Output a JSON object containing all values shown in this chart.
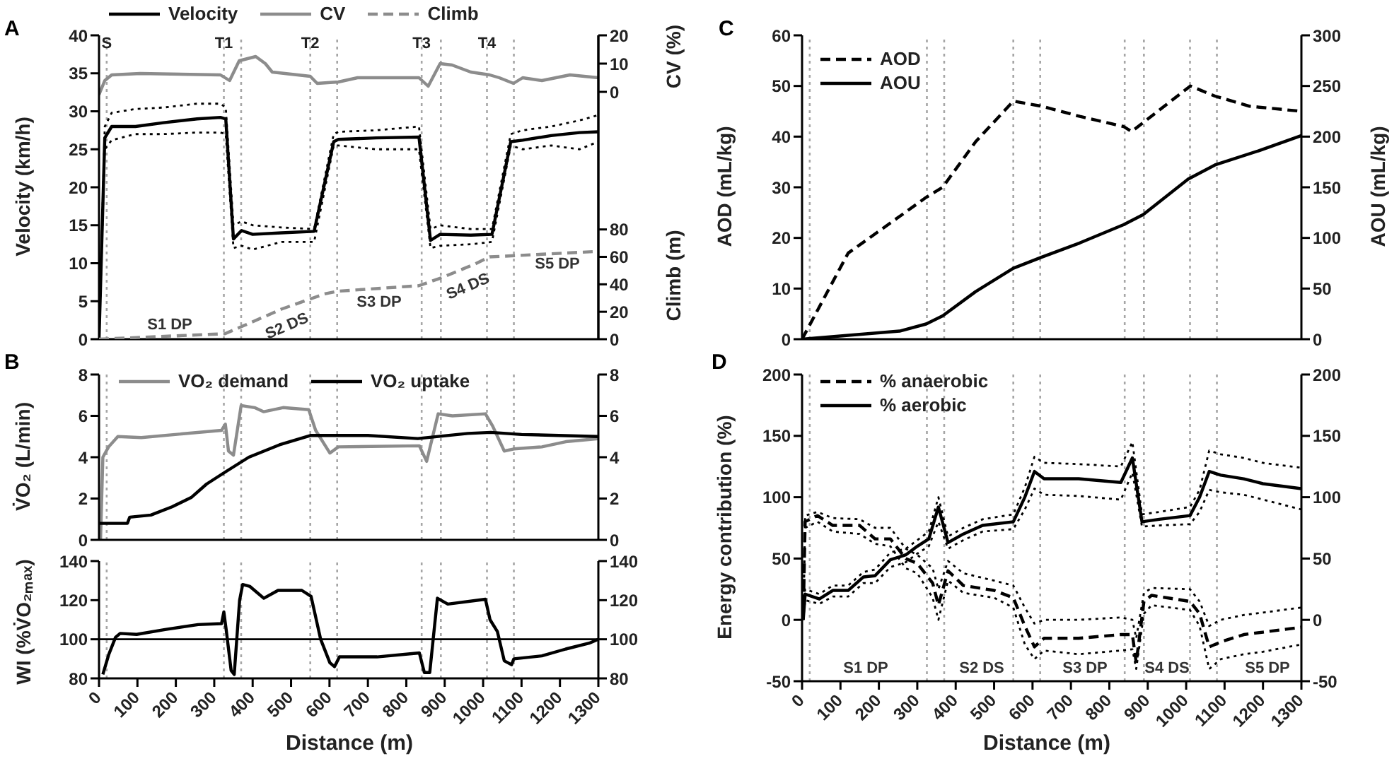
{
  "chart_data": [
    {
      "type": "line",
      "title": "A",
      "ylabel": "Velocity (km/h)",
      "y2label": "CV (%)",
      "y3label": "Climb (m)",
      "xlim": [
        0,
        1300
      ],
      "ylim": [
        0,
        40
      ],
      "yticks": [
        0,
        5,
        10,
        15,
        20,
        25,
        30,
        35,
        40
      ],
      "y2lim": [
        -87.5,
        20
      ],
      "y2ticks": [
        0,
        10,
        20
      ],
      "y3lim": [
        0,
        221.5
      ],
      "y3ticks": [
        0,
        20,
        40,
        60,
        80
      ],
      "tick_labels": "y",
      "legend": "top",
      "series": [
        {
          "name": "Velocity",
          "color": "#000000",
          "x": [
            0,
            15,
            33,
            95,
            168,
            255,
            316,
            330,
            350,
            371,
            400,
            475,
            560,
            611,
            623,
            722,
            833,
            863,
            888,
            968,
            1023,
            1072,
            1103,
            1177,
            1251,
            1300
          ],
          "values": [
            0,
            26.5,
            28,
            28,
            28.5,
            29,
            29.2,
            29,
            13.2,
            14.3,
            13.8,
            14,
            14.2,
            26,
            26.3,
            26.5,
            26.6,
            13,
            13.8,
            13.7,
            13.8,
            26,
            26.2,
            26.8,
            27.2,
            27.3
          ]
        },
        {
          "color": "#000000",
          "line_style": "dotted",
          "x": [
            0,
            15,
            33,
            95,
            168,
            255,
            316,
            330,
            350,
            371,
            400,
            475,
            560,
            611,
            623,
            722,
            833,
            863,
            888,
            968,
            1023,
            1072,
            1103,
            1177,
            1251,
            1300
          ],
          "values": [
            0,
            28,
            29.8,
            30.3,
            30.5,
            31,
            31,
            30.5,
            15,
            15.5,
            15,
            14.7,
            14.5,
            27,
            27.3,
            27.5,
            28,
            14.5,
            15,
            14.5,
            14.5,
            27,
            27.5,
            28,
            28.8,
            29.5
          ]
        },
        {
          "color": "#000000",
          "line_style": "dotted",
          "x": [
            0,
            15,
            33,
            95,
            168,
            255,
            316,
            330,
            350,
            371,
            400,
            475,
            560,
            611,
            623,
            722,
            833,
            863,
            888,
            968,
            1023,
            1072,
            1103,
            1177,
            1251,
            1300
          ],
          "values": [
            0,
            25,
            26.2,
            27,
            27,
            27.2,
            27.2,
            27,
            12,
            12.3,
            11.8,
            12.8,
            12.8,
            25.5,
            25.5,
            25,
            25,
            12,
            12.3,
            12.5,
            12.8,
            25.5,
            25,
            25.5,
            25,
            26
          ]
        },
        {
          "name": "CV",
          "color": "#8c8c8c",
          "axis": "y2",
          "x": [
            0,
            15,
            33,
            107,
            316,
            340,
            365,
            408,
            433,
            451,
            550,
            568,
            623,
            673,
            833,
            857,
            888,
            919,
            968,
            1017,
            1042,
            1079,
            1103,
            1153,
            1226,
            1300
          ],
          "values": [
            -1,
            4,
            6,
            6.5,
            6,
            4,
            11,
            12.5,
            10,
            7,
            5.5,
            3,
            3.5,
            5,
            5,
            2,
            10,
            9.5,
            7,
            6,
            5,
            3,
            5,
            4,
            6,
            5
          ]
        },
        {
          "name": "Climb",
          "color": "#8c8c8c",
          "axis": "y3",
          "line_style": "dashed",
          "x": [
            0,
            328,
            378,
            476,
            587,
            623,
            833,
            894,
            980,
            1017,
            1091,
            1300
          ],
          "values": [
            0,
            4,
            10,
            22,
            33,
            35,
            39,
            45,
            55,
            60,
            61,
            64
          ]
        }
      ],
      "ref_lines": [
        {
          "axis": "x",
          "value": 20,
          "label": "S",
          "color": "#a6a6a6",
          "line_style": "dotted"
        },
        {
          "axis": "x",
          "value": 325,
          "label": "T1",
          "color": "#a6a6a6",
          "line_style": "dotted"
        },
        {
          "axis": "x",
          "value": 370,
          "color": "#a6a6a6",
          "line_style": "dotted"
        },
        {
          "axis": "x",
          "value": 550,
          "label": "T2",
          "color": "#a6a6a6",
          "line_style": "dotted"
        },
        {
          "axis": "x",
          "value": 620,
          "color": "#a6a6a6",
          "line_style": "dotted"
        },
        {
          "axis": "x",
          "value": 840,
          "label": "T3",
          "color": "#a6a6a6",
          "line_style": "dotted"
        },
        {
          "axis": "x",
          "value": 890,
          "color": "#a6a6a6",
          "line_style": "dotted"
        },
        {
          "axis": "x",
          "value": 1010,
          "label": "T4",
          "color": "#a6a6a6",
          "line_style": "dotted"
        },
        {
          "axis": "x",
          "value": 1080,
          "color": "#a6a6a6",
          "line_style": "dotted"
        }
      ],
      "annotations": [
        "S1 DP",
        "S2 DS",
        "S3 DP",
        "S4 DS",
        "S5 DP"
      ]
    },
    {
      "type": "line",
      "title": "B",
      "ylabel": "V̇O₂ (L/min)",
      "xlim": [
        0,
        1300
      ],
      "ylim": [
        0,
        8
      ],
      "yticks": [
        0,
        2,
        4,
        6,
        8
      ],
      "y2lim": [
        0,
        8
      ],
      "y2ticks": [
        0,
        2,
        4,
        6,
        8
      ],
      "tick_labels": "y",
      "legend": "top left",
      "series": [
        {
          "name": "VO₂ demand",
          "color": "#8c8c8c",
          "x": [
            4,
            10,
            25,
            49,
            110,
            319,
            329,
            337,
            350,
            370,
            405,
            429,
            479,
            546,
            564,
            601,
            623,
            834,
            853,
            883,
            920,
            1006,
            1025,
            1055,
            1080,
            1153,
            1215,
            1300
          ],
          "values": [
            0,
            4,
            4.5,
            5,
            4.95,
            5.3,
            5.6,
            4.3,
            4.1,
            6.5,
            6.4,
            6.2,
            6.4,
            6.3,
            5.3,
            4.2,
            4.5,
            4.55,
            3.8,
            6.1,
            6,
            6.1,
            5.5,
            4.3,
            4.4,
            4.5,
            4.75,
            4.9
          ]
        },
        {
          "name": "VO₂ uptake",
          "color": "#000000",
          "x": [
            0,
            74,
            80,
            135,
            190,
            240,
            280,
            330,
            390,
            470,
            550,
            700,
            830,
            960,
            1020,
            1100,
            1300
          ],
          "values": [
            0.8,
            0.8,
            1.1,
            1.2,
            1.6,
            2.05,
            2.7,
            3.3,
            4,
            4.6,
            5.05,
            5.05,
            4.9,
            5.15,
            5.2,
            5.1,
            5
          ]
        }
      ],
      "ref_lines": [
        {
          "axis": "x",
          "value": 20,
          "color": "#a6a6a6",
          "line_style": "dotted"
        },
        {
          "axis": "x",
          "value": 325,
          "color": "#a6a6a6",
          "line_style": "dotted"
        },
        {
          "axis": "x",
          "value": 370,
          "color": "#a6a6a6",
          "line_style": "dotted"
        },
        {
          "axis": "x",
          "value": 550,
          "color": "#a6a6a6",
          "line_style": "dotted"
        },
        {
          "axis": "x",
          "value": 620,
          "color": "#a6a6a6",
          "line_style": "dotted"
        },
        {
          "axis": "x",
          "value": 840,
          "color": "#a6a6a6",
          "line_style": "dotted"
        },
        {
          "axis": "x",
          "value": 890,
          "color": "#a6a6a6",
          "line_style": "dotted"
        },
        {
          "axis": "x",
          "value": 1010,
          "color": "#a6a6a6",
          "line_style": "dotted"
        },
        {
          "axis": "x",
          "value": 1080,
          "color": "#a6a6a6",
          "line_style": "dotted"
        }
      ]
    },
    {
      "type": "line",
      "ylabel": "WI (%V̇O₂ₘₐₓ)",
      "xlabel": "Distance (m)",
      "xlim": [
        0,
        1300
      ],
      "xticks": [
        0,
        100,
        200,
        300,
        400,
        500,
        600,
        700,
        800,
        900,
        1000,
        1100,
        1200,
        1300
      ],
      "ylim": [
        80,
        140
      ],
      "yticks": [
        80,
        100,
        120,
        140
      ],
      "y2lim": [
        80,
        140
      ],
      "y2ticks": [
        80,
        100,
        120,
        140
      ],
      "series": [
        {
          "color": "#000000",
          "x": [
            10,
            25,
            43,
            55,
            98,
            172,
            258,
            319,
            325,
            331,
            344,
            352,
            366,
            374,
            393,
            429,
            466,
            528,
            552,
            577,
            601,
            613,
            626,
            724,
            834,
            847,
            861,
            881,
            908,
            1006,
            1018,
            1037,
            1055,
            1074,
            1080,
            1153,
            1215,
            1276,
            1300
          ],
          "values": [
            82,
            92,
            101,
            103,
            102.5,
            105,
            107.5,
            108,
            114,
            105,
            84,
            82,
            120,
            128,
            127,
            121,
            125,
            125,
            122,
            100,
            88,
            86,
            91,
            91,
            93,
            83,
            83,
            121,
            118,
            120.5,
            110,
            104,
            89,
            87,
            90,
            91.5,
            95,
            98,
            100
          ]
        }
      ],
      "ref_lines": [
        {
          "axis": "y",
          "value": 100,
          "color": "#000000",
          "line_style": "solid"
        },
        {
          "axis": "x",
          "value": 20,
          "color": "#a6a6a6",
          "line_style": "dotted"
        },
        {
          "axis": "x",
          "value": 325,
          "color": "#a6a6a6",
          "line_style": "dotted"
        },
        {
          "axis": "x",
          "value": 370,
          "color": "#a6a6a6",
          "line_style": "dotted"
        },
        {
          "axis": "x",
          "value": 550,
          "color": "#a6a6a6",
          "line_style": "dotted"
        },
        {
          "axis": "x",
          "value": 620,
          "color": "#a6a6a6",
          "line_style": "dotted"
        },
        {
          "axis": "x",
          "value": 840,
          "color": "#a6a6a6",
          "line_style": "dotted"
        },
        {
          "axis": "x",
          "value": 890,
          "color": "#a6a6a6",
          "line_style": "dotted"
        },
        {
          "axis": "x",
          "value": 1010,
          "color": "#a6a6a6",
          "line_style": "dotted"
        },
        {
          "axis": "x",
          "value": 1080,
          "color": "#a6a6a6",
          "line_style": "dotted"
        }
      ]
    },
    {
      "type": "line",
      "title": "C",
      "ylabel": "AOD (mL/kg)",
      "y2label": "AOU (mL/kg)",
      "xlim": [
        0,
        1300
      ],
      "ylim": [
        0,
        60
      ],
      "yticks": [
        0,
        10,
        20,
        30,
        40,
        50,
        60
      ],
      "y2lim": [
        0,
        300
      ],
      "y2ticks": [
        0,
        50,
        100,
        150,
        200,
        250,
        300
      ],
      "tick_labels": "y",
      "legend": "top left",
      "series": [
        {
          "name": "AOD",
          "color": "#000000",
          "line_style": "dashed",
          "x": [
            0,
            120,
            231,
            323,
            366,
            452,
            550,
            624,
            723,
            837,
            858,
            1011,
            1075,
            1165,
            1300
          ],
          "values": [
            0,
            17,
            23,
            28,
            30,
            39,
            47,
            46,
            44,
            42,
            41,
            50,
            48,
            46,
            45
          ]
        },
        {
          "name": "AOU",
          "color": "#000000",
          "axis": "y2",
          "x": [
            0,
            254,
            323,
            366,
            452,
            550,
            624,
            723,
            837,
            888,
            1005,
            1075,
            1189,
            1300
          ],
          "values": [
            0,
            8,
            15,
            23,
            47,
            70,
            81,
            95,
            113,
            123,
            158,
            172,
            186,
            201
          ]
        }
      ],
      "ref_lines": [
        {
          "axis": "x",
          "value": 20,
          "color": "#a6a6a6",
          "line_style": "dotted"
        },
        {
          "axis": "x",
          "value": 325,
          "color": "#a6a6a6",
          "line_style": "dotted"
        },
        {
          "axis": "x",
          "value": 370,
          "color": "#a6a6a6",
          "line_style": "dotted"
        },
        {
          "axis": "x",
          "value": 550,
          "color": "#a6a6a6",
          "line_style": "dotted"
        },
        {
          "axis": "x",
          "value": 620,
          "color": "#a6a6a6",
          "line_style": "dotted"
        },
        {
          "axis": "x",
          "value": 840,
          "color": "#a6a6a6",
          "line_style": "dotted"
        },
        {
          "axis": "x",
          "value": 890,
          "color": "#a6a6a6",
          "line_style": "dotted"
        },
        {
          "axis": "x",
          "value": 1010,
          "color": "#a6a6a6",
          "line_style": "dotted"
        },
        {
          "axis": "x",
          "value": 1080,
          "color": "#a6a6a6",
          "line_style": "dotted"
        }
      ]
    },
    {
      "type": "line",
      "title": "D",
      "ylabel": "Energy contribution (%)",
      "xlabel": "Distance (m)",
      "xlim": [
        0,
        1300
      ],
      "xticks": [
        0,
        100,
        200,
        300,
        400,
        500,
        600,
        700,
        800,
        900,
        1000,
        1100,
        1200,
        1300
      ],
      "ylim": [
        -50,
        200
      ],
      "yticks": [
        -50,
        0,
        50,
        100,
        150,
        200
      ],
      "y2lim": [
        -50,
        200
      ],
      "y2ticks": [
        -50,
        0,
        50,
        100,
        150,
        200
      ],
      "legend": "top left",
      "series": [
        {
          "name": "% anaerobic",
          "color": "#000000",
          "line_style": "dashed",
          "x": [
            3,
            8,
            40,
            80,
            150,
            190,
            230,
            270,
            300,
            340,
            355,
            380,
            420,
            500,
            550,
            580,
            605,
            630,
            720,
            830,
            860,
            870,
            890,
            910,
            1010,
            1035,
            1060,
            1090,
            1150,
            1200,
            1300
          ],
          "values": [
            0,
            80,
            85,
            77,
            77,
            66,
            66,
            50,
            46,
            30,
            12,
            40,
            28,
            24,
            18,
            -5,
            -22,
            -15,
            -15,
            -12,
            -12,
            -35,
            15,
            20,
            15,
            5,
            -22,
            -18,
            -12,
            -10,
            -6
          ]
        },
        {
          "color": "#000000",
          "line_style": "dotted",
          "x": [
            3,
            8,
            40,
            80,
            150,
            190,
            230,
            270,
            300,
            340,
            355,
            380,
            420,
            500,
            550,
            580,
            605,
            630,
            720,
            830,
            860,
            870,
            890,
            910,
            1010,
            1035,
            1060,
            1090,
            1150,
            1200,
            1300
          ],
          "values": [
            0,
            85,
            88,
            83,
            82,
            75,
            75,
            58,
            53,
            42,
            25,
            48,
            38,
            32,
            28,
            10,
            -3,
            0,
            0,
            2,
            0,
            -15,
            22,
            26,
            25,
            15,
            -5,
            0,
            4,
            6,
            10
          ]
        },
        {
          "color": "#000000",
          "line_style": "dotted",
          "x": [
            3,
            8,
            40,
            80,
            150,
            190,
            230,
            270,
            300,
            340,
            355,
            380,
            420,
            500,
            550,
            580,
            605,
            630,
            720,
            830,
            860,
            870,
            890,
            910,
            1010,
            1035,
            1060,
            1090,
            1150,
            1200,
            1300
          ],
          "values": [
            0,
            75,
            80,
            72,
            70,
            62,
            60,
            42,
            38,
            18,
            0,
            32,
            22,
            18,
            10,
            -20,
            -32,
            -25,
            -28,
            -25,
            -24,
            -40,
            5,
            12,
            8,
            -5,
            -40,
            -32,
            -28,
            -26,
            -20
          ]
        },
        {
          "name": "% aerobic",
          "color": "#000000",
          "x": [
            3,
            8,
            45,
            80,
            120,
            160,
            190,
            230,
            270,
            300,
            330,
            355,
            380,
            420,
            470,
            550,
            580,
            605,
            630,
            720,
            830,
            860,
            885,
            930,
            1010,
            1035,
            1060,
            1090,
            1150,
            1200,
            1300
          ],
          "values": [
            0,
            21,
            17,
            24,
            24,
            35,
            36,
            49,
            53,
            60,
            66,
            92,
            63,
            70,
            77,
            80,
            100,
            121,
            115,
            115,
            112,
            132,
            80,
            82,
            85,
            100,
            121,
            118,
            115,
            111,
            107
          ]
        },
        {
          "color": "#000000",
          "line_style": "dotted",
          "x": [
            3,
            8,
            45,
            80,
            120,
            160,
            190,
            230,
            270,
            300,
            330,
            355,
            380,
            420,
            470,
            550,
            580,
            605,
            630,
            720,
            830,
            860,
            885,
            930,
            1010,
            1035,
            1060,
            1090,
            1150,
            1200,
            1300
          ],
          "values": [
            0,
            25,
            21,
            28,
            28,
            39,
            41,
            55,
            58,
            65,
            72,
            100,
            68,
            75,
            82,
            86,
            108,
            133,
            128,
            127,
            125,
            145,
            86,
            88,
            92,
            106,
            138,
            135,
            132,
            128,
            124
          ]
        },
        {
          "color": "#000000",
          "line_style": "dotted",
          "x": [
            3,
            8,
            45,
            80,
            120,
            160,
            190,
            230,
            270,
            300,
            330,
            355,
            380,
            420,
            470,
            550,
            580,
            605,
            630,
            720,
            830,
            860,
            885,
            930,
            1010,
            1035,
            1060,
            1090,
            1150,
            1200,
            1300
          ],
          "values": [
            0,
            16,
            13,
            19,
            19,
            30,
            30,
            43,
            47,
            54,
            60,
            80,
            58,
            65,
            72,
            74,
            90,
            107,
            102,
            101,
            98,
            120,
            76,
            77,
            78,
            88,
            106,
            104,
            102,
            98,
            90
          ]
        }
      ],
      "ref_lines": [
        {
          "axis": "x",
          "value": 20,
          "color": "#a6a6a6",
          "line_style": "dotted"
        },
        {
          "axis": "x",
          "value": 325,
          "color": "#a6a6a6",
          "line_style": "dotted"
        },
        {
          "axis": "x",
          "value": 370,
          "color": "#a6a6a6",
          "line_style": "dotted"
        },
        {
          "axis": "x",
          "value": 550,
          "color": "#a6a6a6",
          "line_style": "dotted"
        },
        {
          "axis": "x",
          "value": 620,
          "color": "#a6a6a6",
          "line_style": "dotted"
        },
        {
          "axis": "x",
          "value": 840,
          "color": "#a6a6a6",
          "line_style": "dotted"
        },
        {
          "axis": "x",
          "value": 890,
          "color": "#a6a6a6",
          "line_style": "dotted"
        },
        {
          "axis": "x",
          "value": 1010,
          "color": "#a6a6a6",
          "line_style": "dotted"
        },
        {
          "axis": "x",
          "value": 1080,
          "color": "#a6a6a6",
          "line_style": "dotted"
        }
      ],
      "annotations": [
        "S1 DP",
        "S2 DS",
        "S3 DP",
        "S4 DS",
        "S5 DP"
      ]
    }
  ]
}
